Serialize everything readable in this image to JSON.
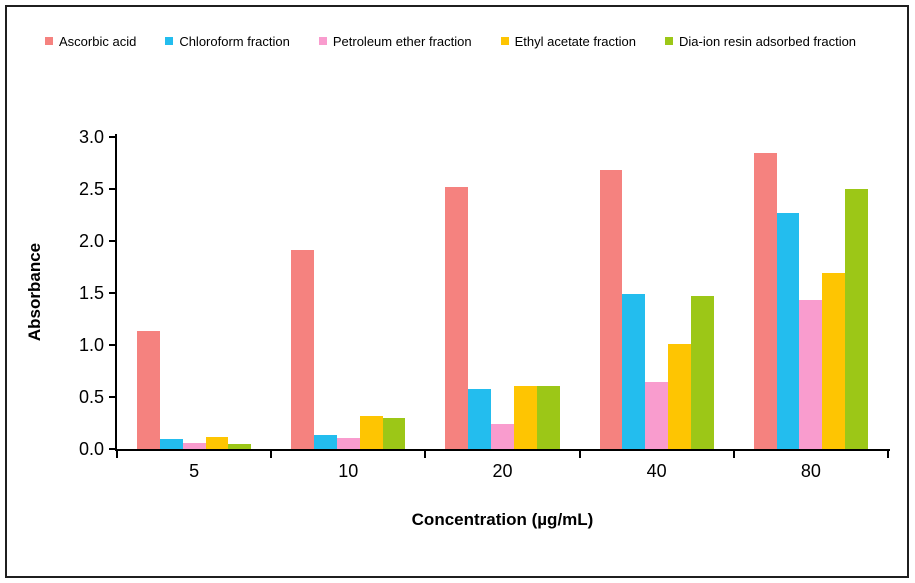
{
  "chart_data": {
    "type": "bar",
    "title": "",
    "xlabel": "Concentration (µg/mL)",
    "ylabel": "Absorbance",
    "categories": [
      "5",
      "10",
      "20",
      "40",
      "80"
    ],
    "series": [
      {
        "name": "Ascorbic acid",
        "color": "#F5827F",
        "values": [
          1.13,
          1.91,
          2.52,
          2.68,
          2.85
        ]
      },
      {
        "name": "Chloroform fraction",
        "color": "#23BDEE",
        "values": [
          0.1,
          0.13,
          0.58,
          1.49,
          2.27
        ]
      },
      {
        "name": "Petroleum ether fraction",
        "color": "#F99CCE",
        "values": [
          0.06,
          0.11,
          0.24,
          0.64,
          1.43
        ]
      },
      {
        "name": "Ethyl acetate fraction",
        "color": "#FEC502",
        "values": [
          0.12,
          0.32,
          0.61,
          1.01,
          1.69
        ]
      },
      {
        "name": "Dia-ion resin adsorbed fraction",
        "color": "#9CC717",
        "values": [
          0.05,
          0.3,
          0.61,
          1.47,
          2.5
        ]
      }
    ],
    "ylim": [
      0,
      3
    ],
    "ytick_step": 0.5,
    "ytick_labels": [
      "0.0",
      "0.5",
      "1.0",
      "1.5",
      "2.0",
      "2.5",
      "3.0"
    ],
    "grid": false,
    "legend_position": "top"
  }
}
